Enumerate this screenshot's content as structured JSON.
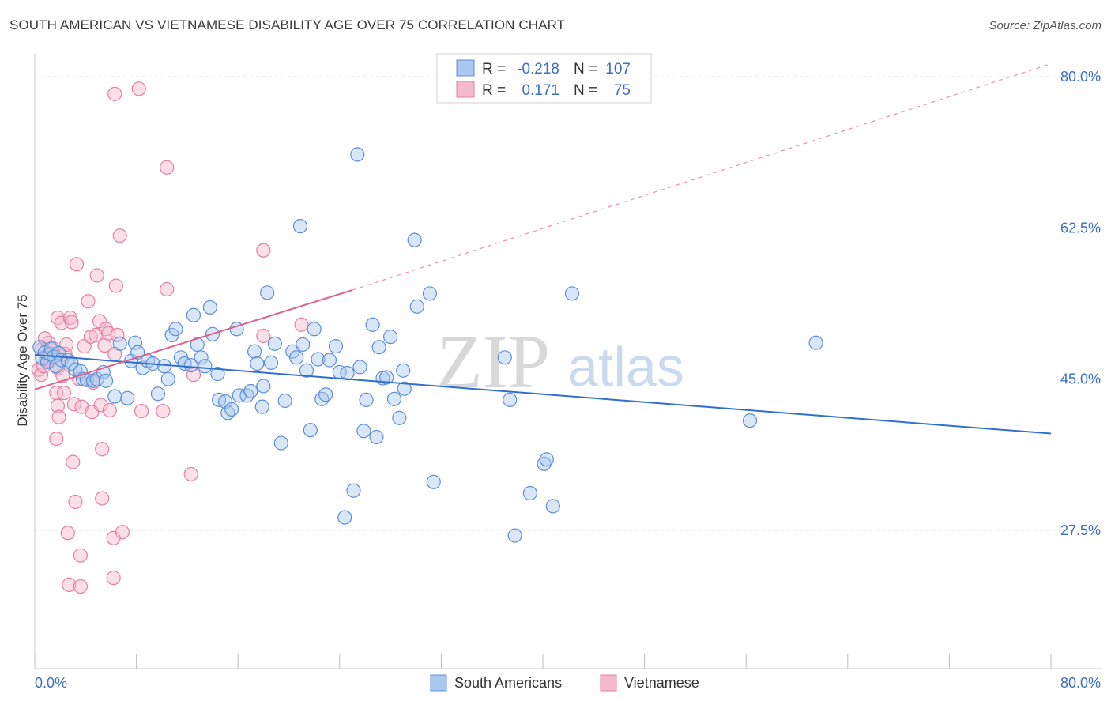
{
  "header": {
    "title": "SOUTH AMERICAN VS VIETNAMESE DISABILITY AGE OVER 75 CORRELATION CHART",
    "source": "Source: ZipAtlas.com"
  },
  "legend": {
    "r_label": "R =",
    "n_label": "N =",
    "series": [
      {
        "r": "-0.218",
        "n": "107"
      },
      {
        "r": "0.171",
        "n": "75"
      }
    ]
  },
  "bottom_legend": [
    "South Americans",
    "Vietnamese"
  ],
  "watermark": {
    "zip": "ZIP",
    "atlas": "atlas"
  },
  "colors": {
    "blue_fill": "#a9c8ef",
    "blue_stroke": "#5d8fd6",
    "blue_line": "#2f6fce",
    "pink_fill": "#f5b9cd",
    "pink_stroke": "#e57fa0",
    "pink_line": "#e0618c",
    "tick_label": "#3a6fc4"
  },
  "chart_data": {
    "type": "scatter",
    "title": "SOUTH AMERICAN VS VIETNAMESE DISABILITY AGE OVER 75 CORRELATION CHART",
    "xlabel": "",
    "ylabel": "Disability Age Over 75",
    "xlim": [
      0,
      80
    ],
    "ylim": [
      10,
      82
    ],
    "x_tick_labels": [
      "0.0%",
      "80.0%"
    ],
    "y_ticks": [
      27.5,
      45.0,
      62.5,
      80.0
    ],
    "y_tick_labels": [
      "27.5%",
      "45.0%",
      "62.5%",
      "80.0%"
    ],
    "grid": true,
    "legend_position": "top-center",
    "series": [
      {
        "name": "South Americans",
        "r": -0.218,
        "n": 107,
        "trend": {
          "x": [
            0,
            80
          ],
          "y": [
            47.8,
            38.7
          ],
          "style": "solid"
        },
        "points": [
          [
            0.4,
            48.7
          ],
          [
            0.6,
            47.4
          ],
          [
            0.8,
            48.1
          ],
          [
            1.0,
            47.0
          ],
          [
            1.2,
            47.9
          ],
          [
            1.3,
            48.5
          ],
          [
            1.5,
            47.6
          ],
          [
            1.7,
            46.5
          ],
          [
            1.9,
            48.0
          ],
          [
            2.1,
            47.2
          ],
          [
            2.6,
            47.2
          ],
          [
            2.9,
            46.8
          ],
          [
            3.2,
            46.1
          ],
          [
            3.6,
            45.9
          ],
          [
            3.8,
            45.0
          ],
          [
            4.1,
            44.9
          ],
          [
            4.6,
            44.8
          ],
          [
            4.9,
            45.0
          ],
          [
            5.4,
            45.8
          ],
          [
            5.6,
            44.8
          ],
          [
            6.3,
            43.0
          ],
          [
            6.7,
            49.1
          ],
          [
            7.3,
            42.8
          ],
          [
            7.6,
            47.1
          ],
          [
            7.9,
            49.2
          ],
          [
            8.1,
            48.1
          ],
          [
            8.5,
            46.3
          ],
          [
            8.9,
            47.1
          ],
          [
            9.3,
            46.8
          ],
          [
            9.7,
            43.3
          ],
          [
            10.2,
            46.5
          ],
          [
            10.5,
            45.0
          ],
          [
            10.8,
            50.1
          ],
          [
            11.1,
            50.8
          ],
          [
            11.5,
            47.5
          ],
          [
            11.8,
            46.8
          ],
          [
            12.3,
            46.6
          ],
          [
            12.5,
            52.4
          ],
          [
            12.8,
            49.0
          ],
          [
            13.1,
            47.5
          ],
          [
            13.4,
            46.5
          ],
          [
            13.8,
            53.3
          ],
          [
            14.0,
            50.2
          ],
          [
            14.5,
            42.6
          ],
          [
            14.4,
            45.6
          ],
          [
            15.0,
            42.4
          ],
          [
            15.2,
            41.1
          ],
          [
            15.5,
            41.5
          ],
          [
            15.9,
            50.8
          ],
          [
            16.1,
            43.1
          ],
          [
            16.7,
            43.1
          ],
          [
            17.0,
            43.6
          ],
          [
            17.3,
            48.2
          ],
          [
            17.5,
            46.8
          ],
          [
            17.9,
            41.8
          ],
          [
            18.0,
            44.2
          ],
          [
            18.3,
            55.0
          ],
          [
            18.6,
            46.9
          ],
          [
            18.9,
            49.1
          ],
          [
            19.4,
            37.6
          ],
          [
            19.7,
            42.5
          ],
          [
            20.3,
            48.2
          ],
          [
            20.6,
            47.5
          ],
          [
            20.9,
            62.7
          ],
          [
            21.1,
            49.0
          ],
          [
            21.4,
            46.0
          ],
          [
            21.7,
            39.1
          ],
          [
            22.0,
            50.8
          ],
          [
            22.3,
            47.3
          ],
          [
            22.6,
            42.7
          ],
          [
            22.9,
            43.2
          ],
          [
            23.2,
            47.2
          ],
          [
            23.7,
            48.8
          ],
          [
            24.0,
            45.8
          ],
          [
            24.4,
            29.0
          ],
          [
            24.6,
            45.7
          ],
          [
            25.1,
            32.1
          ],
          [
            25.4,
            71.0
          ],
          [
            25.6,
            46.4
          ],
          [
            25.9,
            39.0
          ],
          [
            26.1,
            42.6
          ],
          [
            26.6,
            51.3
          ],
          [
            26.9,
            38.3
          ],
          [
            27.1,
            48.7
          ],
          [
            27.4,
            45.1
          ],
          [
            27.7,
            45.2
          ],
          [
            28.0,
            49.9
          ],
          [
            28.3,
            42.7
          ],
          [
            28.7,
            40.5
          ],
          [
            29.1,
            43.9
          ],
          [
            29.0,
            46.0
          ],
          [
            29.9,
            61.1
          ],
          [
            30.1,
            53.4
          ],
          [
            31.1,
            54.9
          ],
          [
            31.4,
            33.1
          ],
          [
            37.0,
            47.5
          ],
          [
            37.4,
            42.6
          ],
          [
            37.8,
            26.9
          ],
          [
            39.0,
            31.8
          ],
          [
            40.1,
            35.2
          ],
          [
            40.3,
            35.7
          ],
          [
            40.8,
            30.3
          ],
          [
            42.3,
            54.9
          ],
          [
            56.3,
            40.2
          ],
          [
            61.5,
            49.2
          ]
        ]
      },
      {
        "name": "Vietnamese",
        "r": 0.171,
        "n": 75,
        "trend": {
          "x": [
            0,
            25
          ],
          "y": [
            43.8,
            55.3
          ],
          "style": "solid",
          "extended_to": [
            80,
            81.5
          ],
          "extended_style": "dashed"
        },
        "points": [
          [
            0.3,
            46.1
          ],
          [
            0.5,
            45.5
          ],
          [
            0.6,
            48.5
          ],
          [
            0.7,
            46.5
          ],
          [
            0.9,
            47.4
          ],
          [
            1.1,
            49.2
          ],
          [
            1.2,
            47.1
          ],
          [
            1.4,
            48.6
          ],
          [
            1.6,
            47.7
          ],
          [
            1.7,
            43.4
          ],
          [
            1.8,
            46.3
          ],
          [
            1.8,
            41.9
          ],
          [
            1.7,
            38.1
          ],
          [
            1.9,
            40.6
          ],
          [
            1.8,
            52.1
          ],
          [
            2.1,
            51.5
          ],
          [
            2.2,
            45.4
          ],
          [
            2.3,
            43.4
          ],
          [
            2.4,
            47.9
          ],
          [
            2.5,
            49.0
          ],
          [
            2.6,
            27.2
          ],
          [
            2.7,
            21.2
          ],
          [
            2.8,
            52.1
          ],
          [
            2.9,
            51.6
          ],
          [
            3.0,
            35.4
          ],
          [
            3.1,
            42.1
          ],
          [
            3.2,
            30.8
          ],
          [
            3.3,
            58.3
          ],
          [
            3.5,
            45.0
          ],
          [
            3.7,
            41.8
          ],
          [
            3.6,
            24.6
          ],
          [
            3.6,
            21.0
          ],
          [
            3.9,
            48.8
          ],
          [
            4.2,
            54.0
          ],
          [
            4.4,
            49.9
          ],
          [
            4.5,
            41.2
          ],
          [
            4.6,
            44.6
          ],
          [
            4.8,
            50.1
          ],
          [
            4.9,
            57.0
          ],
          [
            5.1,
            51.7
          ],
          [
            5.2,
            42.0
          ],
          [
            5.3,
            36.9
          ],
          [
            5.3,
            31.2
          ],
          [
            5.5,
            48.9
          ],
          [
            5.6,
            50.8
          ],
          [
            5.8,
            50.3
          ],
          [
            5.9,
            41.4
          ],
          [
            6.2,
            26.6
          ],
          [
            6.2,
            22.0
          ],
          [
            6.3,
            47.9
          ],
          [
            6.4,
            55.8
          ],
          [
            6.5,
            50.1
          ],
          [
            6.7,
            61.6
          ],
          [
            6.9,
            27.3
          ],
          [
            6.3,
            78.0
          ],
          [
            8.2,
            78.6
          ],
          [
            8.4,
            41.3
          ],
          [
            10.1,
            41.3
          ],
          [
            10.4,
            69.5
          ],
          [
            10.4,
            55.4
          ],
          [
            12.3,
            34.0
          ],
          [
            12.5,
            45.5
          ],
          [
            18.0,
            59.9
          ],
          [
            18.0,
            50.0
          ],
          [
            21.0,
            51.3
          ],
          [
            0.8,
            49.7
          ]
        ]
      }
    ]
  }
}
